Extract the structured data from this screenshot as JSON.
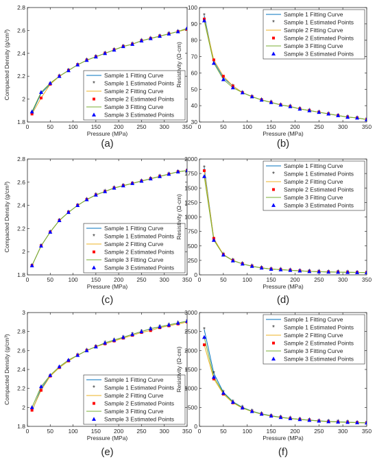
{
  "figure": {
    "xlabel": "Pressure (MPa)",
    "legend_labels": [
      "Sample 1 Fitting Curve",
      "Sample 1 Estimated Points",
      "Sample 2 Fitting Curve",
      "Sample 2 Estimated Points",
      "Sample 3 Fitting Curve",
      "Sample 3 Estimated Points"
    ],
    "colors": {
      "s1_curve": "#0072BD",
      "s1_points": "#000000",
      "s2_curve": "#EDB120",
      "s2_points": "#FF0000",
      "s3_curve": "#77AC30",
      "s3_points": "#0000FF"
    }
  },
  "chart_data": [
    {
      "type": "line",
      "panel": "(a)",
      "xlabel": "Pressure (MPa)",
      "ylabel": "Compacted Density (g/cm³)",
      "xlim": [
        0,
        350
      ],
      "ylim": [
        1.8,
        2.8
      ],
      "xticks": [
        0,
        50,
        100,
        150,
        200,
        250,
        300,
        350
      ],
      "yticks": [
        1.8,
        2.0,
        2.2,
        2.4,
        2.6,
        2.8
      ],
      "ytick_labels": [
        "1.8",
        "2",
        "2.2",
        "2.4",
        "2.6",
        "2.8"
      ],
      "legend": "bottom-right",
      "x": [
        10,
        30,
        50,
        70,
        90,
        110,
        130,
        150,
        170,
        190,
        210,
        230,
        250,
        270,
        290,
        310,
        330,
        350
      ],
      "series": [
        {
          "name": "Sample 1",
          "values": [
            1.88,
            2.05,
            2.13,
            2.2,
            2.25,
            2.3,
            2.34,
            2.37,
            2.4,
            2.43,
            2.46,
            2.48,
            2.51,
            2.53,
            2.55,
            2.57,
            2.59,
            2.61
          ]
        },
        {
          "name": "Sample 2",
          "values": [
            1.87,
            2.01,
            2.13,
            2.2,
            2.25,
            2.3,
            2.34,
            2.37,
            2.4,
            2.43,
            2.46,
            2.48,
            2.51,
            2.53,
            2.55,
            2.57,
            2.59,
            2.61
          ]
        },
        {
          "name": "Sample 3",
          "values": [
            1.89,
            2.06,
            2.14,
            2.2,
            2.25,
            2.3,
            2.34,
            2.37,
            2.4,
            2.43,
            2.46,
            2.48,
            2.51,
            2.53,
            2.55,
            2.57,
            2.59,
            2.62
          ]
        }
      ]
    },
    {
      "type": "line",
      "panel": "(b)",
      "xlabel": "Pressure (MPa)",
      "ylabel": "Resistivity (Ω·cm)",
      "xlim": [
        0,
        350
      ],
      "ylim": [
        30,
        100
      ],
      "xticks": [
        0,
        50,
        100,
        150,
        200,
        250,
        300,
        350
      ],
      "yticks": [
        30,
        40,
        50,
        60,
        70,
        80,
        90,
        100
      ],
      "ytick_labels": [
        "30",
        "40",
        "50",
        "60",
        "70",
        "80",
        "90",
        "100"
      ],
      "legend": "top-right",
      "x": [
        10,
        30,
        50,
        70,
        90,
        110,
        130,
        150,
        170,
        190,
        210,
        230,
        250,
        270,
        290,
        310,
        330,
        350
      ],
      "series": [
        {
          "name": "Sample 1",
          "values": [
            95,
            67,
            57,
            52,
            48,
            45.5,
            43.5,
            42,
            40.5,
            39.5,
            38,
            37,
            36,
            35,
            34,
            33,
            32.5,
            31.5
          ]
        },
        {
          "name": "Sample 2",
          "values": [
            93,
            68,
            58,
            52,
            48,
            45.5,
            43.5,
            42,
            40.5,
            39.5,
            38,
            37,
            36,
            35,
            34,
            33,
            32.5,
            31.5
          ]
        },
        {
          "name": "Sample 3",
          "values": [
            92,
            66,
            56,
            51,
            48,
            45.5,
            43.5,
            42,
            40.5,
            39.5,
            38,
            37,
            36,
            35,
            34,
            33,
            32.5,
            31.5
          ]
        }
      ]
    },
    {
      "type": "line",
      "panel": "(c)",
      "xlabel": "Pressure (MPa)",
      "ylabel": "Compacted Density (g/cm³)",
      "xlim": [
        0,
        350
      ],
      "ylim": [
        1.8,
        2.8
      ],
      "xticks": [
        0,
        50,
        100,
        150,
        200,
        250,
        300,
        350
      ],
      "yticks": [
        1.8,
        2.0,
        2.2,
        2.4,
        2.6,
        2.8
      ],
      "ytick_labels": [
        "1.8",
        "2",
        "2.2",
        "2.4",
        "2.6",
        "2.8"
      ],
      "legend": "bottom-right",
      "x": [
        10,
        30,
        50,
        70,
        90,
        110,
        130,
        150,
        170,
        190,
        210,
        230,
        250,
        270,
        290,
        310,
        330,
        350
      ],
      "series": [
        {
          "name": "Sample 1",
          "values": [
            1.88,
            2.05,
            2.17,
            2.27,
            2.34,
            2.4,
            2.45,
            2.49,
            2.52,
            2.55,
            2.57,
            2.59,
            2.61,
            2.63,
            2.65,
            2.67,
            2.69,
            2.7
          ]
        },
        {
          "name": "Sample 2",
          "values": [
            1.88,
            2.05,
            2.17,
            2.27,
            2.34,
            2.4,
            2.45,
            2.49,
            2.52,
            2.55,
            2.57,
            2.59,
            2.61,
            2.63,
            2.65,
            2.67,
            2.69,
            2.7
          ]
        },
        {
          "name": "Sample 3",
          "values": [
            1.88,
            2.05,
            2.17,
            2.27,
            2.34,
            2.4,
            2.45,
            2.49,
            2.52,
            2.55,
            2.57,
            2.59,
            2.61,
            2.63,
            2.65,
            2.67,
            2.69,
            2.7
          ]
        }
      ]
    },
    {
      "type": "line",
      "panel": "(d)",
      "xlabel": "Pressure (MPa)",
      "ylabel": "Resistivity (Ω·cm)",
      "xlim": [
        0,
        350
      ],
      "ylim": [
        0,
        2000
      ],
      "xticks": [
        0,
        50,
        100,
        150,
        200,
        250,
        300,
        350
      ],
      "yticks": [
        0,
        250,
        500,
        750,
        1000,
        1250,
        1500,
        1750,
        2000
      ],
      "ytick_labels": [
        "0",
        "250",
        "500",
        "750",
        "1000",
        "1250",
        "1500",
        "1750",
        "2000"
      ],
      "legend": "top-right",
      "x": [
        10,
        30,
        50,
        70,
        90,
        110,
        130,
        150,
        170,
        190,
        210,
        230,
        250,
        270,
        290,
        310,
        330,
        350
      ],
      "series": [
        {
          "name": "Sample 1",
          "values": [
            1850,
            620,
            350,
            250,
            190,
            150,
            120,
            100,
            90,
            80,
            70,
            60,
            55,
            50,
            48,
            45,
            42,
            40
          ]
        },
        {
          "name": "Sample 2",
          "values": [
            1800,
            630,
            350,
            250,
            190,
            150,
            120,
            100,
            90,
            80,
            70,
            60,
            55,
            50,
            48,
            45,
            42,
            40
          ]
        },
        {
          "name": "Sample 3",
          "values": [
            1700,
            600,
            345,
            245,
            190,
            150,
            120,
            100,
            90,
            80,
            70,
            60,
            55,
            50,
            48,
            45,
            42,
            40
          ]
        }
      ]
    },
    {
      "type": "line",
      "panel": "(e)",
      "xlabel": "Pressure (MPa)",
      "ylabel": "Compacted Density (g/cm³)",
      "xlim": [
        0,
        350
      ],
      "ylim": [
        1.8,
        3.0
      ],
      "xticks": [
        0,
        50,
        100,
        150,
        200,
        250,
        300,
        350
      ],
      "yticks": [
        1.8,
        2.0,
        2.2,
        2.4,
        2.6,
        2.8,
        3.0
      ],
      "ytick_labels": [
        "1.8",
        "2",
        "2.2",
        "2.4",
        "2.6",
        "2.8",
        "3"
      ],
      "legend": "bottom-right",
      "x": [
        10,
        30,
        50,
        70,
        90,
        110,
        130,
        150,
        170,
        190,
        210,
        230,
        250,
        270,
        290,
        310,
        330,
        350
      ],
      "series": [
        {
          "name": "Sample 1",
          "values": [
            1.96,
            2.2,
            2.33,
            2.42,
            2.49,
            2.55,
            2.6,
            2.64,
            2.68,
            2.71,
            2.74,
            2.77,
            2.8,
            2.83,
            2.85,
            2.87,
            2.89,
            2.91
          ]
        },
        {
          "name": "Sample 2",
          "values": [
            1.97,
            2.18,
            2.33,
            2.42,
            2.49,
            2.55,
            2.6,
            2.64,
            2.67,
            2.7,
            2.73,
            2.76,
            2.79,
            2.81,
            2.84,
            2.86,
            2.88,
            2.9
          ]
        },
        {
          "name": "Sample 3",
          "values": [
            2.0,
            2.22,
            2.34,
            2.43,
            2.5,
            2.55,
            2.6,
            2.64,
            2.68,
            2.71,
            2.74,
            2.77,
            2.8,
            2.83,
            2.85,
            2.87,
            2.89,
            2.91
          ]
        }
      ]
    },
    {
      "type": "line",
      "panel": "(f)",
      "xlabel": "Pressure (MPa)",
      "ylabel": "Resistivity (Ω·cm)",
      "xlim": [
        0,
        350
      ],
      "ylim": [
        0,
        3000
      ],
      "xticks": [
        0,
        50,
        100,
        150,
        200,
        250,
        300,
        350
      ],
      "yticks": [
        0,
        500,
        1000,
        1500,
        2000,
        2500,
        3000
      ],
      "ytick_labels": [
        "0",
        "500",
        "1000",
        "1500",
        "2000",
        "2500",
        "3000"
      ],
      "legend": "top-right",
      "x": [
        10,
        30,
        50,
        70,
        90,
        110,
        130,
        150,
        170,
        190,
        210,
        230,
        250,
        270,
        290,
        310,
        330,
        350
      ],
      "series": [
        {
          "name": "Sample 1",
          "values": [
            2550,
            1400,
            900,
            650,
            500,
            400,
            330,
            280,
            240,
            210,
            185,
            165,
            145,
            130,
            120,
            110,
            100,
            95
          ]
        },
        {
          "name": "Sample 2",
          "values": [
            2150,
            1250,
            850,
            620,
            480,
            390,
            320,
            270,
            235,
            205,
            180,
            160,
            140,
            125,
            115,
            105,
            98,
            90
          ]
        },
        {
          "name": "Sample 3",
          "values": [
            2350,
            1300,
            880,
            640,
            490,
            395,
            325,
            275,
            238,
            208,
            183,
            163,
            143,
            128,
            118,
            108,
            99,
            92
          ]
        }
      ]
    }
  ]
}
